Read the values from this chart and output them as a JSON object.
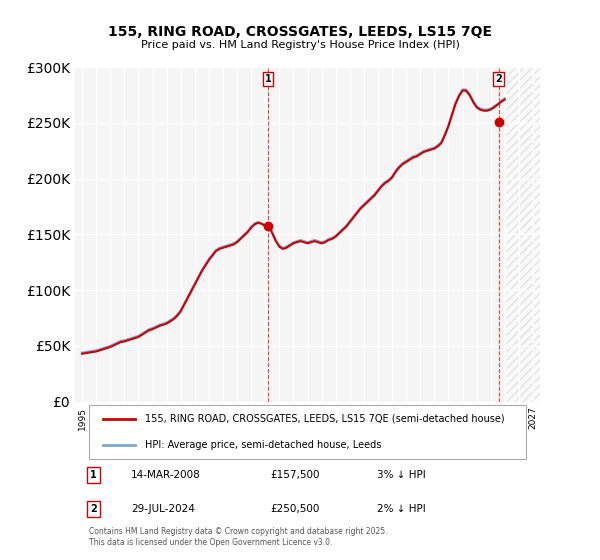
{
  "title": "155, RING ROAD, CROSSGATES, LEEDS, LS15 7QE",
  "subtitle": "Price paid vs. HM Land Registry's House Price Index (HPI)",
  "legend_line1": "155, RING ROAD, CROSSGATES, LEEDS, LS15 7QE (semi-detached house)",
  "legend_line2": "HPI: Average price, semi-detached house, Leeds",
  "transaction1_label": "1",
  "transaction1_date": "14-MAR-2008",
  "transaction1_price": "£157,500",
  "transaction1_hpi": "3% ↓ HPI",
  "transaction1_year": 2008.2,
  "transaction1_value": 157500,
  "transaction2_label": "2",
  "transaction2_date": "29-JUL-2024",
  "transaction2_price": "£250,500",
  "transaction2_hpi": "2% ↓ HPI",
  "transaction2_year": 2024.57,
  "transaction2_value": 250500,
  "ylim": [
    0,
    300000
  ],
  "xlim_start": 1994.5,
  "xlim_end": 2027.5,
  "hpi_color": "#7ba7d4",
  "price_color": "#cc0000",
  "background_color": "#ffffff",
  "plot_bg_color": "#f5f5f5",
  "grid_color": "#ffffff",
  "footnote": "Contains HM Land Registry data © Crown copyright and database right 2025.\nThis data is licensed under the Open Government Licence v3.0.",
  "hpi_data": {
    "years": [
      1995.0,
      1995.25,
      1995.5,
      1995.75,
      1996.0,
      1996.25,
      1996.5,
      1996.75,
      1997.0,
      1997.25,
      1997.5,
      1997.75,
      1998.0,
      1998.25,
      1998.5,
      1998.75,
      1999.0,
      1999.25,
      1999.5,
      1999.75,
      2000.0,
      2000.25,
      2000.5,
      2000.75,
      2001.0,
      2001.25,
      2001.5,
      2001.75,
      2002.0,
      2002.25,
      2002.5,
      2002.75,
      2003.0,
      2003.25,
      2003.5,
      2003.75,
      2004.0,
      2004.25,
      2004.5,
      2004.75,
      2005.0,
      2005.25,
      2005.5,
      2005.75,
      2006.0,
      2006.25,
      2006.5,
      2006.75,
      2007.0,
      2007.25,
      2007.5,
      2007.75,
      2008.0,
      2008.25,
      2008.5,
      2008.75,
      2009.0,
      2009.25,
      2009.5,
      2009.75,
      2010.0,
      2010.25,
      2010.5,
      2010.75,
      2011.0,
      2011.25,
      2011.5,
      2011.75,
      2012.0,
      2012.25,
      2012.5,
      2012.75,
      2013.0,
      2013.25,
      2013.5,
      2013.75,
      2014.0,
      2014.25,
      2014.5,
      2014.75,
      2015.0,
      2015.25,
      2015.5,
      2015.75,
      2016.0,
      2016.25,
      2016.5,
      2016.75,
      2017.0,
      2017.25,
      2017.5,
      2017.75,
      2018.0,
      2018.25,
      2018.5,
      2018.75,
      2019.0,
      2019.25,
      2019.5,
      2019.75,
      2020.0,
      2020.25,
      2020.5,
      2020.75,
      2021.0,
      2021.25,
      2021.5,
      2021.75,
      2022.0,
      2022.25,
      2022.5,
      2022.75,
      2023.0,
      2023.25,
      2023.5,
      2023.75,
      2024.0,
      2024.25,
      2024.5,
      2024.75,
      2025.0
    ],
    "values": [
      44000,
      44500,
      45000,
      45500,
      46000,
      47000,
      48000,
      49000,
      50000,
      51500,
      53000,
      54500,
      55000,
      56000,
      57000,
      58000,
      59000,
      61000,
      63000,
      65000,
      66000,
      67500,
      69000,
      70000,
      71000,
      73000,
      75000,
      78000,
      82000,
      88000,
      94000,
      100000,
      106000,
      112000,
      118000,
      123000,
      128000,
      132000,
      136000,
      138000,
      139000,
      140000,
      141000,
      142000,
      144000,
      147000,
      150000,
      153000,
      157000,
      160000,
      161000,
      160000,
      158000,
      157000,
      152000,
      145000,
      140000,
      138000,
      139000,
      141000,
      143000,
      144000,
      145000,
      144000,
      143000,
      144000,
      145000,
      144000,
      143000,
      144000,
      146000,
      147000,
      149000,
      152000,
      155000,
      158000,
      162000,
      166000,
      170000,
      174000,
      177000,
      180000,
      183000,
      186000,
      190000,
      194000,
      197000,
      199000,
      202000,
      207000,
      211000,
      214000,
      216000,
      218000,
      220000,
      221000,
      223000,
      225000,
      226000,
      227000,
      228000,
      230000,
      233000,
      240000,
      248000,
      258000,
      268000,
      275000,
      280000,
      280000,
      276000,
      270000,
      265000,
      263000,
      262000,
      262000,
      263000,
      265000,
      267000,
      270000,
      272000
    ]
  },
  "price_data": {
    "years": [
      1995.0,
      1995.25,
      1995.5,
      1995.75,
      1996.0,
      1996.25,
      1996.5,
      1996.75,
      1997.0,
      1997.25,
      1997.5,
      1997.75,
      1998.0,
      1998.25,
      1998.5,
      1998.75,
      1999.0,
      1999.25,
      1999.5,
      1999.75,
      2000.0,
      2000.25,
      2000.5,
      2000.75,
      2001.0,
      2001.25,
      2001.5,
      2001.75,
      2002.0,
      2002.25,
      2002.5,
      2002.75,
      2003.0,
      2003.25,
      2003.5,
      2003.75,
      2004.0,
      2004.25,
      2004.5,
      2004.75,
      2005.0,
      2005.25,
      2005.5,
      2005.75,
      2006.0,
      2006.25,
      2006.5,
      2006.75,
      2007.0,
      2007.25,
      2007.5,
      2007.75,
      2008.0,
      2008.25,
      2008.5,
      2008.75,
      2009.0,
      2009.25,
      2009.5,
      2009.75,
      2010.0,
      2010.25,
      2010.5,
      2010.75,
      2011.0,
      2011.25,
      2011.5,
      2011.75,
      2012.0,
      2012.25,
      2012.5,
      2012.75,
      2013.0,
      2013.25,
      2013.5,
      2013.75,
      2014.0,
      2014.25,
      2014.5,
      2014.75,
      2015.0,
      2015.25,
      2015.5,
      2015.75,
      2016.0,
      2016.25,
      2016.5,
      2016.75,
      2017.0,
      2017.25,
      2017.5,
      2017.75,
      2018.0,
      2018.25,
      2018.5,
      2018.75,
      2019.0,
      2019.25,
      2019.5,
      2019.75,
      2020.0,
      2020.25,
      2020.5,
      2020.75,
      2021.0,
      2021.25,
      2021.5,
      2021.75,
      2022.0,
      2022.25,
      2022.5,
      2022.75,
      2023.0,
      2023.25,
      2023.5,
      2023.75,
      2024.0,
      2024.25,
      2024.5,
      2024.75,
      2025.0
    ],
    "values": [
      43000,
      43500,
      44000,
      44500,
      45000,
      46000,
      47000,
      48000,
      49000,
      50500,
      52000,
      53500,
      54000,
      55000,
      56000,
      57000,
      58000,
      60000,
      62000,
      64000,
      65000,
      66500,
      68000,
      69000,
      70000,
      72000,
      74000,
      77000,
      81000,
      87000,
      93000,
      99000,
      105000,
      111000,
      117000,
      122000,
      127000,
      131000,
      135000,
      137000,
      138000,
      139000,
      140000,
      141000,
      143000,
      146000,
      149000,
      152000,
      156000,
      159000,
      160500,
      159500,
      157500,
      157500,
      151000,
      144000,
      139000,
      137000,
      138000,
      140000,
      142000,
      143000,
      144000,
      143000,
      142000,
      143000,
      144000,
      143000,
      142000,
      143000,
      145000,
      146000,
      148000,
      151000,
      154000,
      157000,
      161000,
      165000,
      169000,
      173000,
      176000,
      179000,
      182000,
      185000,
      189000,
      193000,
      196000,
      198000,
      201000,
      206000,
      210000,
      213000,
      215000,
      217000,
      219000,
      220000,
      222000,
      224000,
      225000,
      226000,
      227000,
      229000,
      232000,
      239000,
      247000,
      257000,
      267000,
      274000,
      279000,
      279000,
      275000,
      269000,
      264000,
      262000,
      261000,
      261000,
      262000,
      264000,
      266500,
      269000,
      271000
    ]
  }
}
